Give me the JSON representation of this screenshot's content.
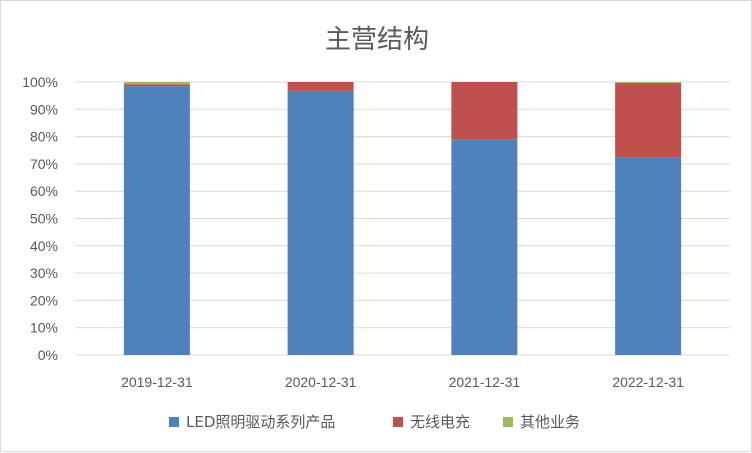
{
  "chart_data": {
    "type": "bar",
    "stacked": true,
    "title": "主营结构",
    "categories": [
      "2019-12-31",
      "2020-12-31",
      "2021-12-31",
      "2022-12-31"
    ],
    "series": [
      {
        "name": "LED照明驱动系列产品",
        "color": "#4F81BD",
        "values": [
          98.5,
          96.8,
          79.0,
          72.5
        ]
      },
      {
        "name": "无线电充",
        "color": "#C0504D",
        "values": [
          0.7,
          3.2,
          21.0,
          27.2
        ]
      },
      {
        "name": "其他业务",
        "color": "#9BBB59",
        "values": [
          0.8,
          0.0,
          0.0,
          0.3
        ]
      }
    ],
    "yticks": [
      "0%",
      "10%",
      "20%",
      "30%",
      "40%",
      "50%",
      "60%",
      "70%",
      "80%",
      "90%",
      "100%"
    ],
    "ylim": [
      0,
      100
    ],
    "grid": true,
    "legend": "bottom"
  }
}
